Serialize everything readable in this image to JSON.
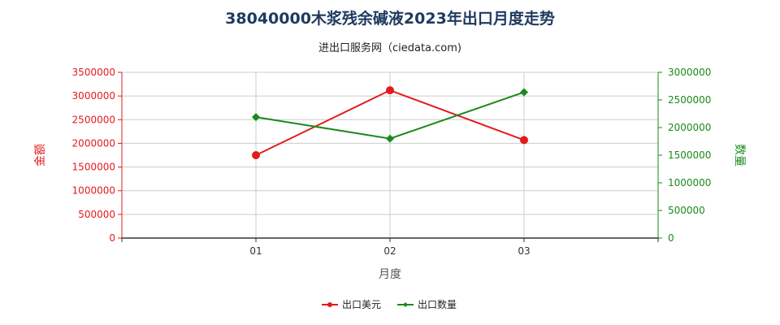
{
  "title": "38040000木浆残余碱液2023年出口月度走势",
  "subtitle": "进出口服务网（ciedata.com)",
  "colors": {
    "left": "#e31a1c",
    "right": "#1a8a1a",
    "grid": "#cccccc",
    "axis": "#333333"
  },
  "chart_data": {
    "type": "line",
    "xlabel": "月度",
    "ylabel_left": "金额",
    "ylabel_right": "数量",
    "categories": [
      "01",
      "02",
      "03"
    ],
    "ylim_left": [
      0,
      3500000
    ],
    "ylim_right": [
      0,
      3000000
    ],
    "yticks_left": [
      "0",
      "500000",
      "1000000",
      "1500000",
      "2000000",
      "2500000",
      "3000000",
      "3500000"
    ],
    "yticks_right": [
      "0",
      "500000",
      "1000000",
      "1500000",
      "2000000",
      "2500000",
      "3000000"
    ],
    "series": [
      {
        "name": "出口美元",
        "axis": "left",
        "color": "#e31a1c",
        "marker": "circle",
        "values": [
          1750000,
          3120000,
          2070000
        ]
      },
      {
        "name": "出口数量",
        "axis": "right",
        "color": "#1a8a1a",
        "marker": "diamond",
        "values": [
          2190000,
          1800000,
          2640000
        ]
      }
    ],
    "grid": true,
    "legend": "bottom-center"
  }
}
